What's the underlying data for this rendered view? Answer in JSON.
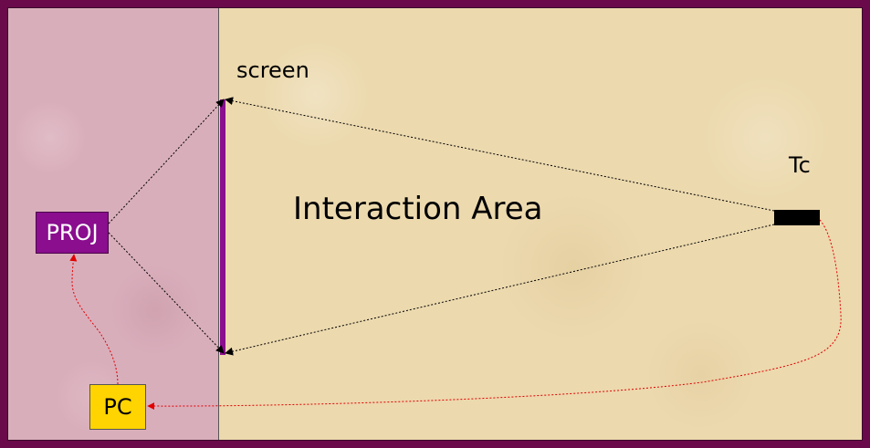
{
  "labels": {
    "screen": "screen",
    "interaction_area": "Interaction Area",
    "tc": "Tc",
    "proj": "PROJ",
    "pc": "PC"
  },
  "colors": {
    "frame": "#6a0a4a",
    "left_room": "#d9aebb",
    "right_room": "#ecd9ae",
    "projector": "#8a0e8e",
    "pc": "#ffd400",
    "screen": "#8a0e8e",
    "tc_device": "#000000",
    "data_link": "#e00000",
    "projection_lines": "#000000"
  }
}
